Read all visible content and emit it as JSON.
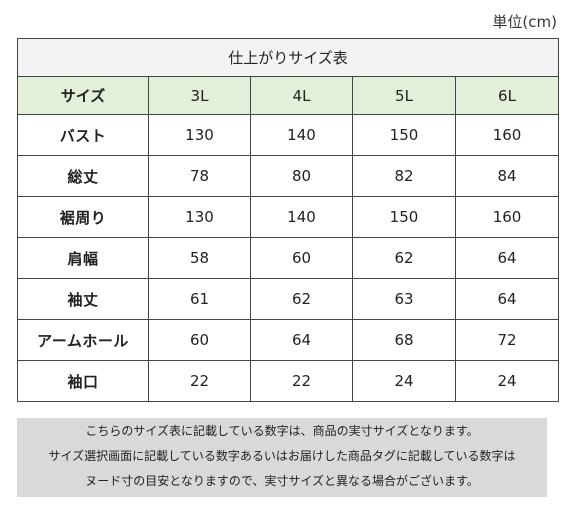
{
  "unit": "単位(cm)",
  "table": {
    "title": "仕上がりサイズ表",
    "header": [
      "サイズ",
      "3L",
      "4L",
      "5L",
      "6L"
    ],
    "rows": [
      {
        "label": "バスト",
        "values": [
          "130",
          "140",
          "150",
          "160"
        ]
      },
      {
        "label": "総丈",
        "values": [
          "78",
          "80",
          "82",
          "84"
        ]
      },
      {
        "label": "裾周り",
        "values": [
          "130",
          "140",
          "150",
          "160"
        ]
      },
      {
        "label": "肩幅",
        "values": [
          "58",
          "60",
          "62",
          "64"
        ]
      },
      {
        "label": "袖丈",
        "values": [
          "61",
          "62",
          "63",
          "64"
        ]
      },
      {
        "label": "アームホール",
        "values": [
          "60",
          "64",
          "68",
          "72"
        ]
      },
      {
        "label": "袖口",
        "values": [
          "22",
          "22",
          "24",
          "24"
        ]
      }
    ]
  },
  "note": {
    "lines": [
      "こちらのサイズ表に記載している数字は、商品の実寸サイズとなります。",
      "サイズ選択画面に記載している数字あるいはお届けした商品タグに記載している数字は",
      "ヌード寸の目安となりますので、実寸サイズと異なる場合がございます。"
    ]
  },
  "colors": {
    "header_bg": "#e2efd9",
    "title_bg": "#f3f3f3",
    "note_bg": "#d9d9d9",
    "border": "#444444"
  }
}
